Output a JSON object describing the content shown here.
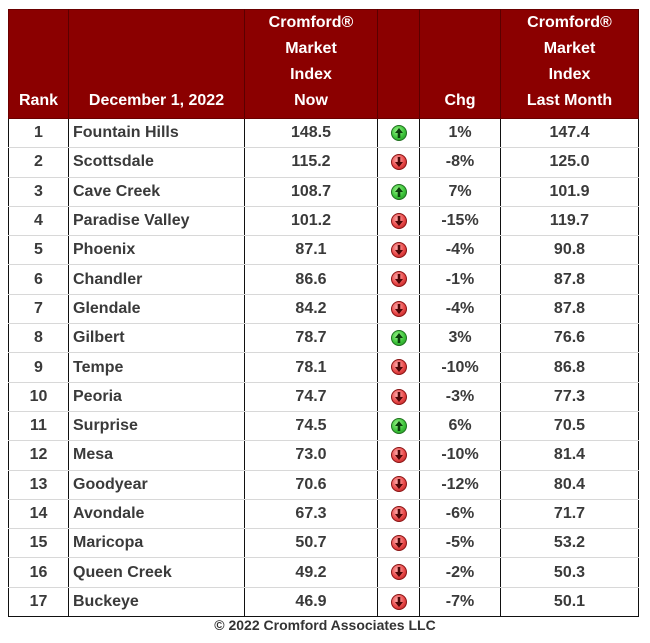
{
  "header": {
    "rank": "Rank",
    "date": "December 1, 2022",
    "now_lines": [
      "Cromford®",
      "Market",
      "Index",
      "Now"
    ],
    "chg": "Chg",
    "last_lines": [
      "Cromford®",
      "Market",
      "Index",
      "Last Month"
    ]
  },
  "colors": {
    "header_bg": "#8b0000",
    "up_arrow": "#3cc43a",
    "down_arrow": "#e84848"
  },
  "rows": [
    {
      "rank": "1",
      "city": "Fountain Hills",
      "now": "148.5",
      "dir": "up",
      "chg": "1%",
      "last": "147.4"
    },
    {
      "rank": "2",
      "city": "Scottsdale",
      "now": "115.2",
      "dir": "down",
      "chg": "-8%",
      "last": "125.0"
    },
    {
      "rank": "3",
      "city": "Cave Creek",
      "now": "108.7",
      "dir": "up",
      "chg": "7%",
      "last": "101.9"
    },
    {
      "rank": "4",
      "city": "Paradise Valley",
      "now": "101.2",
      "dir": "down",
      "chg": "-15%",
      "last": "119.7"
    },
    {
      "rank": "5",
      "city": "Phoenix",
      "now": "87.1",
      "dir": "down",
      "chg": "-4%",
      "last": "90.8"
    },
    {
      "rank": "6",
      "city": "Chandler",
      "now": "86.6",
      "dir": "down",
      "chg": "-1%",
      "last": "87.8"
    },
    {
      "rank": "7",
      "city": "Glendale",
      "now": "84.2",
      "dir": "down",
      "chg": "-4%",
      "last": "87.8"
    },
    {
      "rank": "8",
      "city": "Gilbert",
      "now": "78.7",
      "dir": "up",
      "chg": "3%",
      "last": "76.6"
    },
    {
      "rank": "9",
      "city": "Tempe",
      "now": "78.1",
      "dir": "down",
      "chg": "-10%",
      "last": "86.8"
    },
    {
      "rank": "10",
      "city": "Peoria",
      "now": "74.7",
      "dir": "down",
      "chg": "-3%",
      "last": "77.3"
    },
    {
      "rank": "11",
      "city": "Surprise",
      "now": "74.5",
      "dir": "up",
      "chg": "6%",
      "last": "70.5"
    },
    {
      "rank": "12",
      "city": "Mesa",
      "now": "73.0",
      "dir": "down",
      "chg": "-10%",
      "last": "81.4"
    },
    {
      "rank": "13",
      "city": "Goodyear",
      "now": "70.6",
      "dir": "down",
      "chg": "-12%",
      "last": "80.4"
    },
    {
      "rank": "14",
      "city": "Avondale",
      "now": "67.3",
      "dir": "down",
      "chg": "-6%",
      "last": "71.7"
    },
    {
      "rank": "15",
      "city": "Maricopa",
      "now": "50.7",
      "dir": "down",
      "chg": "-5%",
      "last": "53.2"
    },
    {
      "rank": "16",
      "city": "Queen Creek",
      "now": "49.2",
      "dir": "down",
      "chg": "-2%",
      "last": "50.3"
    },
    {
      "rank": "17",
      "city": "Buckeye",
      "now": "46.9",
      "dir": "down",
      "chg": "-7%",
      "last": "50.1"
    }
  ],
  "footer": "© 2022 Cromford Associates LLC"
}
